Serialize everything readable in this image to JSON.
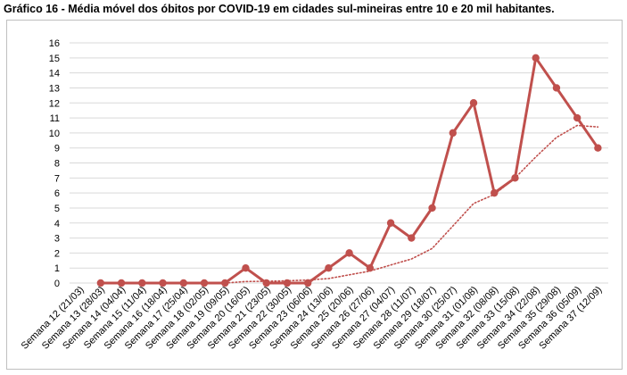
{
  "chart_data": {
    "type": "line",
    "title": "Gráfico 16 - Média móvel dos óbitos por COVID-19 em cidades sul-mineiras entre 10 e 20 mil habitantes.",
    "xlabel": "",
    "ylabel": "",
    "ylim": [
      0,
      16
    ],
    "yticks": [
      0,
      1,
      2,
      3,
      4,
      5,
      6,
      7,
      8,
      9,
      10,
      11,
      12,
      13,
      14,
      15,
      16
    ],
    "grid": true,
    "legend": "none",
    "categories": [
      "Semana 12 (21/03)",
      "Semana 13 (28/03)",
      "Semana 14 (04/04)",
      "Semana 15 (11/04)",
      "Semana 16 (18/04)",
      "Semana 17 (25/04)",
      "Semana 18 (02/05)",
      "Semana 19 (09/05)",
      "Semana 20 (16/05)",
      "Semana 21 (23/05)",
      "Semana 22 (30/05)",
      "Semana 23 (06/06)",
      "Semana 24 (13/06)",
      "Semana 25 (20/06)",
      "Semana 26 (27/06)",
      "Semana 27 (04/07)",
      "Semana 28 (11/07)",
      "Semana 29 (18/07)",
      "Semana 30 (25/07)",
      "Semana 31 (01/08)",
      "Semana 32 (08/08)",
      "Semana 33 (15/08)",
      "Semana 34 (22/08)",
      "Semana 35 (29/08)",
      "Semana 36 (05/09)",
      "Semana 37 (12/09)"
    ],
    "series": [
      {
        "style": "solid-markers",
        "color": "#c0504d",
        "values": [
          null,
          0,
          0,
          0,
          0,
          0,
          0,
          0,
          1,
          0,
          0,
          0,
          1,
          2,
          1,
          4,
          3,
          5,
          10,
          12,
          6,
          7,
          15,
          13,
          11,
          9
        ]
      },
      {
        "style": "dotted-trend",
        "color": "#c0504d",
        "values": [
          null,
          null,
          null,
          null,
          null,
          null,
          null,
          0,
          0.1,
          0.12,
          0.15,
          0.2,
          0.3,
          0.55,
          0.8,
          1.2,
          1.6,
          2.3,
          3.8,
          5.3,
          5.9,
          7.0,
          8.4,
          9.7,
          10.5,
          10.4
        ]
      }
    ]
  }
}
